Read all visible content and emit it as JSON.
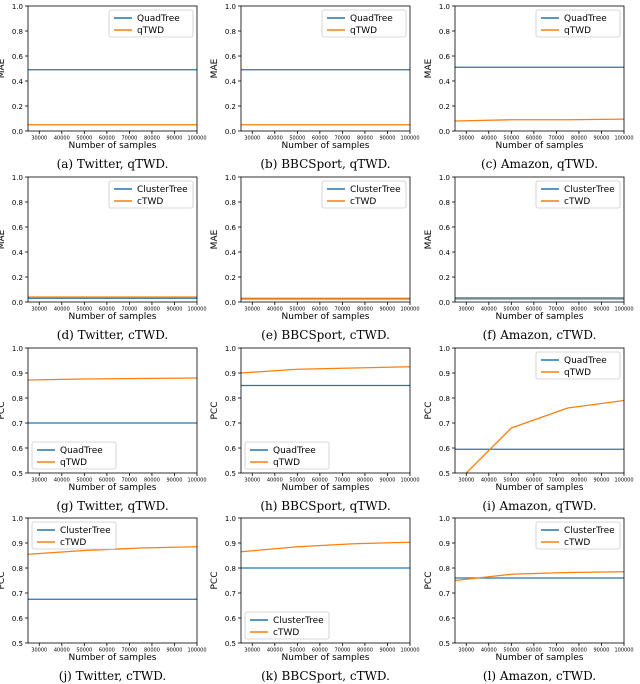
{
  "colors": {
    "blue": "#1f77b4",
    "orange": "#ff7f0e"
  },
  "chart_data": [
    {
      "type": "line",
      "panel": "a",
      "caption": "(a) Twitter, qTWD.",
      "xlabel": "Number of samples",
      "ylabel": "MAE",
      "xlim": [
        25000,
        100000
      ],
      "ylim": [
        0.0,
        1.0
      ],
      "x_ticks": [
        30000,
        40000,
        50000,
        60000,
        70000,
        80000,
        90000,
        100000
      ],
      "y_ticks": [
        0.0,
        0.2,
        0.4,
        0.6,
        0.8,
        1.0
      ],
      "legend": "top-right",
      "series": [
        {
          "name": "QuadTree",
          "color": "#1f77b4",
          "x": [
            25000,
            100000
          ],
          "y": [
            0.49,
            0.49
          ]
        },
        {
          "name": "qTWD",
          "color": "#ff7f0e",
          "x": [
            25000,
            50000,
            75000,
            100000
          ],
          "y": [
            0.05,
            0.05,
            0.05,
            0.05
          ]
        }
      ]
    },
    {
      "type": "line",
      "panel": "b",
      "caption": "(b) BBCSport, qTWD.",
      "xlabel": "Number of samples",
      "ylabel": "MAE",
      "xlim": [
        25000,
        100000
      ],
      "ylim": [
        0.0,
        1.0
      ],
      "x_ticks": [
        30000,
        40000,
        50000,
        60000,
        70000,
        80000,
        90000,
        100000
      ],
      "y_ticks": [
        0.0,
        0.2,
        0.4,
        0.6,
        0.8,
        1.0
      ],
      "legend": "top-right",
      "series": [
        {
          "name": "QuadTree",
          "color": "#1f77b4",
          "x": [
            25000,
            100000
          ],
          "y": [
            0.49,
            0.49
          ]
        },
        {
          "name": "qTWD",
          "color": "#ff7f0e",
          "x": [
            25000,
            50000,
            75000,
            100000
          ],
          "y": [
            0.05,
            0.05,
            0.05,
            0.05
          ]
        }
      ]
    },
    {
      "type": "line",
      "panel": "c",
      "caption": "(c) Amazon, qTWD.",
      "xlabel": "Number of samples",
      "ylabel": "MAE",
      "xlim": [
        25000,
        100000
      ],
      "ylim": [
        0.0,
        1.0
      ],
      "x_ticks": [
        30000,
        40000,
        50000,
        60000,
        70000,
        80000,
        90000,
        100000
      ],
      "y_ticks": [
        0.0,
        0.2,
        0.4,
        0.6,
        0.8,
        1.0
      ],
      "legend": "top-right",
      "series": [
        {
          "name": "QuadTree",
          "color": "#1f77b4",
          "x": [
            25000,
            100000
          ],
          "y": [
            0.51,
            0.51
          ]
        },
        {
          "name": "qTWD",
          "color": "#ff7f0e",
          "x": [
            25000,
            50000,
            75000,
            100000
          ],
          "y": [
            0.08,
            0.09,
            0.09,
            0.095
          ]
        }
      ]
    },
    {
      "type": "line",
      "panel": "d",
      "caption": "(d) Twitter, cTWD.",
      "xlabel": "Number of samples",
      "ylabel": "MAE",
      "xlim": [
        25000,
        100000
      ],
      "ylim": [
        0.0,
        1.0
      ],
      "x_ticks": [
        30000,
        40000,
        50000,
        60000,
        70000,
        80000,
        90000,
        100000
      ],
      "y_ticks": [
        0.0,
        0.2,
        0.4,
        0.6,
        0.8,
        1.0
      ],
      "legend": "top-right",
      "series": [
        {
          "name": "ClusterTree",
          "color": "#1f77b4",
          "x": [
            25000,
            100000
          ],
          "y": [
            0.03,
            0.03
          ]
        },
        {
          "name": "cTWD",
          "color": "#ff7f0e",
          "x": [
            25000,
            50000,
            75000,
            100000
          ],
          "y": [
            0.04,
            0.04,
            0.04,
            0.04
          ]
        }
      ]
    },
    {
      "type": "line",
      "panel": "e",
      "caption": "(e) BBCSport, cTWD.",
      "xlabel": "Number of samples",
      "ylabel": "MAE",
      "xlim": [
        25000,
        100000
      ],
      "ylim": [
        0.0,
        1.0
      ],
      "x_ticks": [
        30000,
        40000,
        50000,
        60000,
        70000,
        80000,
        90000,
        100000
      ],
      "y_ticks": [
        0.0,
        0.2,
        0.4,
        0.6,
        0.8,
        1.0
      ],
      "legend": "top-right",
      "series": [
        {
          "name": "ClusterTree",
          "color": "#1f77b4",
          "x": [
            25000,
            100000
          ],
          "y": [
            0.025,
            0.025
          ]
        },
        {
          "name": "cTWD",
          "color": "#ff7f0e",
          "x": [
            25000,
            50000,
            75000,
            100000
          ],
          "y": [
            0.03,
            0.03,
            0.03,
            0.03
          ]
        }
      ]
    },
    {
      "type": "line",
      "panel": "f",
      "caption": "(f) Amazon, cTWD.",
      "xlabel": "Number of samples",
      "ylabel": "MAE",
      "xlim": [
        25000,
        100000
      ],
      "ylim": [
        0.0,
        1.0
      ],
      "x_ticks": [
        30000,
        40000,
        50000,
        60000,
        70000,
        80000,
        90000,
        100000
      ],
      "y_ticks": [
        0.0,
        0.2,
        0.4,
        0.6,
        0.8,
        1.0
      ],
      "legend": "top-right",
      "series": [
        {
          "name": "ClusterTree",
          "color": "#1f77b4",
          "x": [
            25000,
            100000
          ],
          "y": [
            0.025,
            0.025
          ]
        },
        {
          "name": "cTWD",
          "color": "#ff7f0e",
          "x": [
            25000,
            50000,
            75000,
            100000
          ],
          "y": [
            0.035,
            0.035,
            0.035,
            0.035
          ]
        }
      ]
    },
    {
      "type": "line",
      "panel": "g",
      "caption": "(g) Twitter, qTWD.",
      "xlabel": "Number of samples",
      "ylabel": "PCC",
      "xlim": [
        25000,
        100000
      ],
      "ylim": [
        0.5,
        1.0
      ],
      "x_ticks": [
        30000,
        40000,
        50000,
        60000,
        70000,
        80000,
        90000,
        100000
      ],
      "y_ticks": [
        0.5,
        0.6,
        0.7,
        0.8,
        0.9,
        1.0
      ],
      "legend": "bottom-left",
      "series": [
        {
          "name": "QuadTree",
          "color": "#1f77b4",
          "x": [
            25000,
            100000
          ],
          "y": [
            0.7,
            0.7
          ]
        },
        {
          "name": "qTWD",
          "color": "#ff7f0e",
          "x": [
            25000,
            50000,
            75000,
            100000
          ],
          "y": [
            0.872,
            0.876,
            0.878,
            0.88
          ]
        }
      ]
    },
    {
      "type": "line",
      "panel": "h",
      "caption": "(h) BBCSport, qTWD.",
      "xlabel": "Number of samples",
      "ylabel": "PCC",
      "xlim": [
        25000,
        100000
      ],
      "ylim": [
        0.5,
        1.0
      ],
      "x_ticks": [
        30000,
        40000,
        50000,
        60000,
        70000,
        80000,
        90000,
        100000
      ],
      "y_ticks": [
        0.5,
        0.6,
        0.7,
        0.8,
        0.9,
        1.0
      ],
      "legend": "bottom-left",
      "series": [
        {
          "name": "QuadTree",
          "color": "#1f77b4",
          "x": [
            25000,
            100000
          ],
          "y": [
            0.85,
            0.85
          ]
        },
        {
          "name": "qTWD",
          "color": "#ff7f0e",
          "x": [
            25000,
            50000,
            75000,
            100000
          ],
          "y": [
            0.9,
            0.915,
            0.92,
            0.925
          ]
        }
      ]
    },
    {
      "type": "line",
      "panel": "i",
      "caption": "(i) Amazon, qTWD.",
      "xlabel": "Number of samples",
      "ylabel": "PCC",
      "xlim": [
        25000,
        100000
      ],
      "ylim": [
        0.5,
        1.0
      ],
      "x_ticks": [
        30000,
        40000,
        50000,
        60000,
        70000,
        80000,
        90000,
        100000
      ],
      "y_ticks": [
        0.5,
        0.6,
        0.7,
        0.8,
        0.9,
        1.0
      ],
      "legend": "top-right",
      "series": [
        {
          "name": "QuadTree",
          "color": "#1f77b4",
          "x": [
            25000,
            100000
          ],
          "y": [
            0.595,
            0.595
          ]
        },
        {
          "name": "qTWD",
          "color": "#ff7f0e",
          "x": [
            30000,
            50000,
            75000,
            100000
          ],
          "y": [
            0.5,
            0.68,
            0.76,
            0.79
          ]
        }
      ]
    },
    {
      "type": "line",
      "panel": "j",
      "caption": "(j) Twitter, cTWD.",
      "xlabel": "Number of samples",
      "ylabel": "PCC",
      "xlim": [
        25000,
        100000
      ],
      "ylim": [
        0.5,
        1.0
      ],
      "x_ticks": [
        30000,
        40000,
        50000,
        60000,
        70000,
        80000,
        90000,
        100000
      ],
      "y_ticks": [
        0.5,
        0.6,
        0.7,
        0.8,
        0.9,
        1.0
      ],
      "legend": "top-left",
      "series": [
        {
          "name": "ClusterTree",
          "color": "#1f77b4",
          "x": [
            25000,
            100000
          ],
          "y": [
            0.675,
            0.675
          ]
        },
        {
          "name": "cTWD",
          "color": "#ff7f0e",
          "x": [
            25000,
            50000,
            75000,
            100000
          ],
          "y": [
            0.855,
            0.87,
            0.88,
            0.885
          ]
        }
      ]
    },
    {
      "type": "line",
      "panel": "k",
      "caption": "(k) BBCSport, cTWD.",
      "xlabel": "Number of samples",
      "ylabel": "PCC",
      "xlim": [
        25000,
        100000
      ],
      "ylim": [
        0.5,
        1.0
      ],
      "x_ticks": [
        30000,
        40000,
        50000,
        60000,
        70000,
        80000,
        90000,
        100000
      ],
      "y_ticks": [
        0.5,
        0.6,
        0.7,
        0.8,
        0.9,
        1.0
      ],
      "legend": "bottom-left",
      "series": [
        {
          "name": "ClusterTree",
          "color": "#1f77b4",
          "x": [
            25000,
            100000
          ],
          "y": [
            0.8,
            0.8
          ]
        },
        {
          "name": "cTWD",
          "color": "#ff7f0e",
          "x": [
            25000,
            50000,
            75000,
            100000
          ],
          "y": [
            0.865,
            0.885,
            0.897,
            0.903
          ]
        }
      ]
    },
    {
      "type": "line",
      "panel": "l",
      "caption": "(l) Amazon, cTWD.",
      "xlabel": "Number of samples",
      "ylabel": "PCC",
      "xlim": [
        25000,
        100000
      ],
      "ylim": [
        0.5,
        1.0
      ],
      "x_ticks": [
        30000,
        40000,
        50000,
        60000,
        70000,
        80000,
        90000,
        100000
      ],
      "y_ticks": [
        0.5,
        0.6,
        0.7,
        0.8,
        0.9,
        1.0
      ],
      "legend": "top-right",
      "series": [
        {
          "name": "ClusterTree",
          "color": "#1f77b4",
          "x": [
            25000,
            100000
          ],
          "y": [
            0.76,
            0.76
          ]
        },
        {
          "name": "cTWD",
          "color": "#ff7f0e",
          "x": [
            25000,
            50000,
            75000,
            100000
          ],
          "y": [
            0.75,
            0.775,
            0.782,
            0.785
          ]
        }
      ]
    }
  ]
}
